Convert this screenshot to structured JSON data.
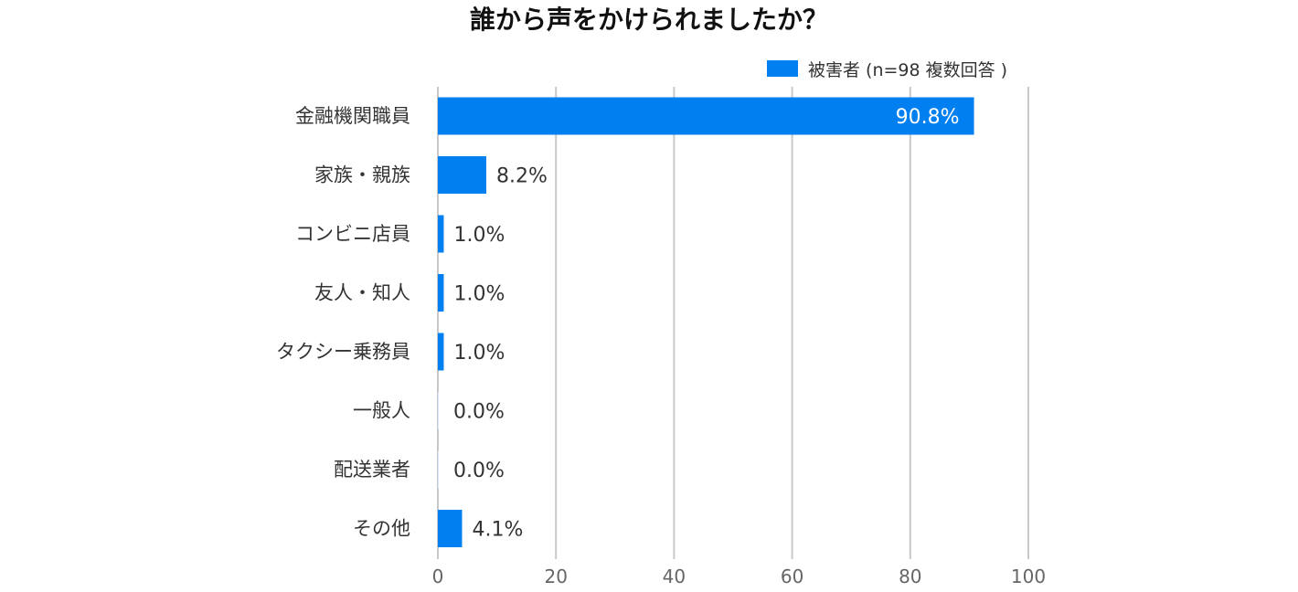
{
  "chart_data": {
    "type": "bar",
    "orientation": "horizontal",
    "title": "誰から声をかけられましたか？",
    "categories": [
      "金融機関職員",
      "家族・親族",
      "コンビニ店員",
      "友人・知人",
      "タクシー乗務員",
      "一般人",
      "配送業者",
      "その他"
    ],
    "series": [
      {
        "name": "被害者 (n=98 複数回答 )",
        "values": [
          90.8,
          8.2,
          1.0,
          1.0,
          1.0,
          0.0,
          0.0,
          4.1
        ],
        "data_labels": [
          "90.8%",
          "8.2%",
          "1.0%",
          "1.0%",
          "1.0%",
          "0.0%",
          "0.0%",
          "4.1%"
        ],
        "color": "#0080F0"
      }
    ],
    "xlim": [
      0,
      100
    ],
    "xticks": [
      0,
      20,
      40,
      60,
      80,
      100
    ],
    "xtick_labels": [
      "0",
      "20",
      "40",
      "60",
      "80",
      "100"
    ],
    "grid": true,
    "legend_position": "top-right"
  }
}
